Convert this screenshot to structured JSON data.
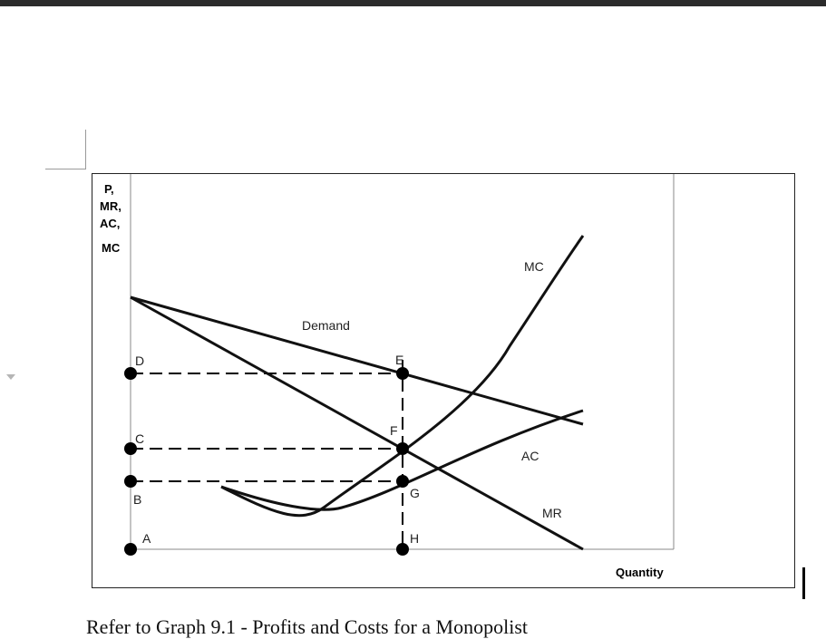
{
  "figure": {
    "y_axis_label_lines": [
      "P,",
      "MR,",
      "AC,",
      "MC"
    ],
    "x_axis_label": "Quantity",
    "curve_labels": {
      "demand": "Demand",
      "mc": "MC",
      "ac": "AC",
      "mr": "MR"
    },
    "point_labels": {
      "A": "A",
      "B": "B",
      "C": "C",
      "D": "D",
      "E": "E",
      "F": "F",
      "G": "G",
      "H": "H"
    }
  },
  "caption": "Refer to Graph 9.1 - Profits and Costs for a Monopolist"
}
